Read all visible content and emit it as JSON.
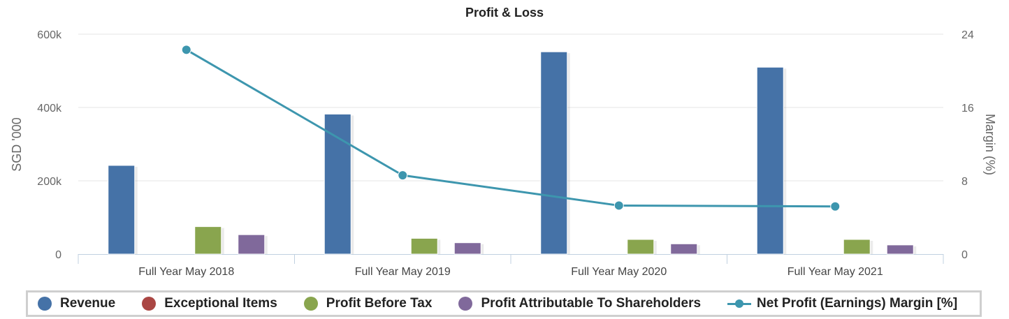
{
  "chart_data": {
    "type": "bar",
    "title": "Profit & Loss",
    "categories": [
      "Full Year May 2018",
      "Full Year May 2019",
      "Full Year May 2020",
      "Full Year May 2021"
    ],
    "y_left": {
      "label": "SGD '000",
      "ylim": [
        0,
        600000
      ],
      "ticks": [
        0,
        200000,
        400000,
        600000
      ],
      "tick_labels": [
        "0",
        "200k",
        "400k",
        "600k"
      ]
    },
    "y_right": {
      "label": "Margin (%)",
      "ylim": [
        0,
        24
      ],
      "ticks": [
        0,
        8,
        16,
        24
      ],
      "tick_labels": [
        "0",
        "8",
        "16",
        "24"
      ]
    },
    "grid": true,
    "legend_position": "bottom",
    "series": [
      {
        "name": "Revenue",
        "type": "bar",
        "axis": "left",
        "color": "#4572a7",
        "values": [
          242000,
          382000,
          552000,
          510000
        ]
      },
      {
        "name": "Exceptional Items",
        "type": "bar",
        "axis": "left",
        "color": "#aa4643",
        "values": [
          0,
          0,
          0,
          0
        ]
      },
      {
        "name": "Profit Before Tax",
        "type": "bar",
        "axis": "left",
        "color": "#89a54e",
        "values": [
          75000,
          43000,
          40000,
          40000
        ]
      },
      {
        "name": "Profit Attributable To Shareholders",
        "type": "bar",
        "axis": "left",
        "color": "#80699b",
        "values": [
          53000,
          31000,
          28000,
          25000
        ]
      },
      {
        "name": "Net Profit (Earnings) Margin [%]",
        "type": "line",
        "axis": "right",
        "color": "#3d96ae",
        "values": [
          22.3,
          8.6,
          5.3,
          5.2
        ]
      }
    ]
  }
}
